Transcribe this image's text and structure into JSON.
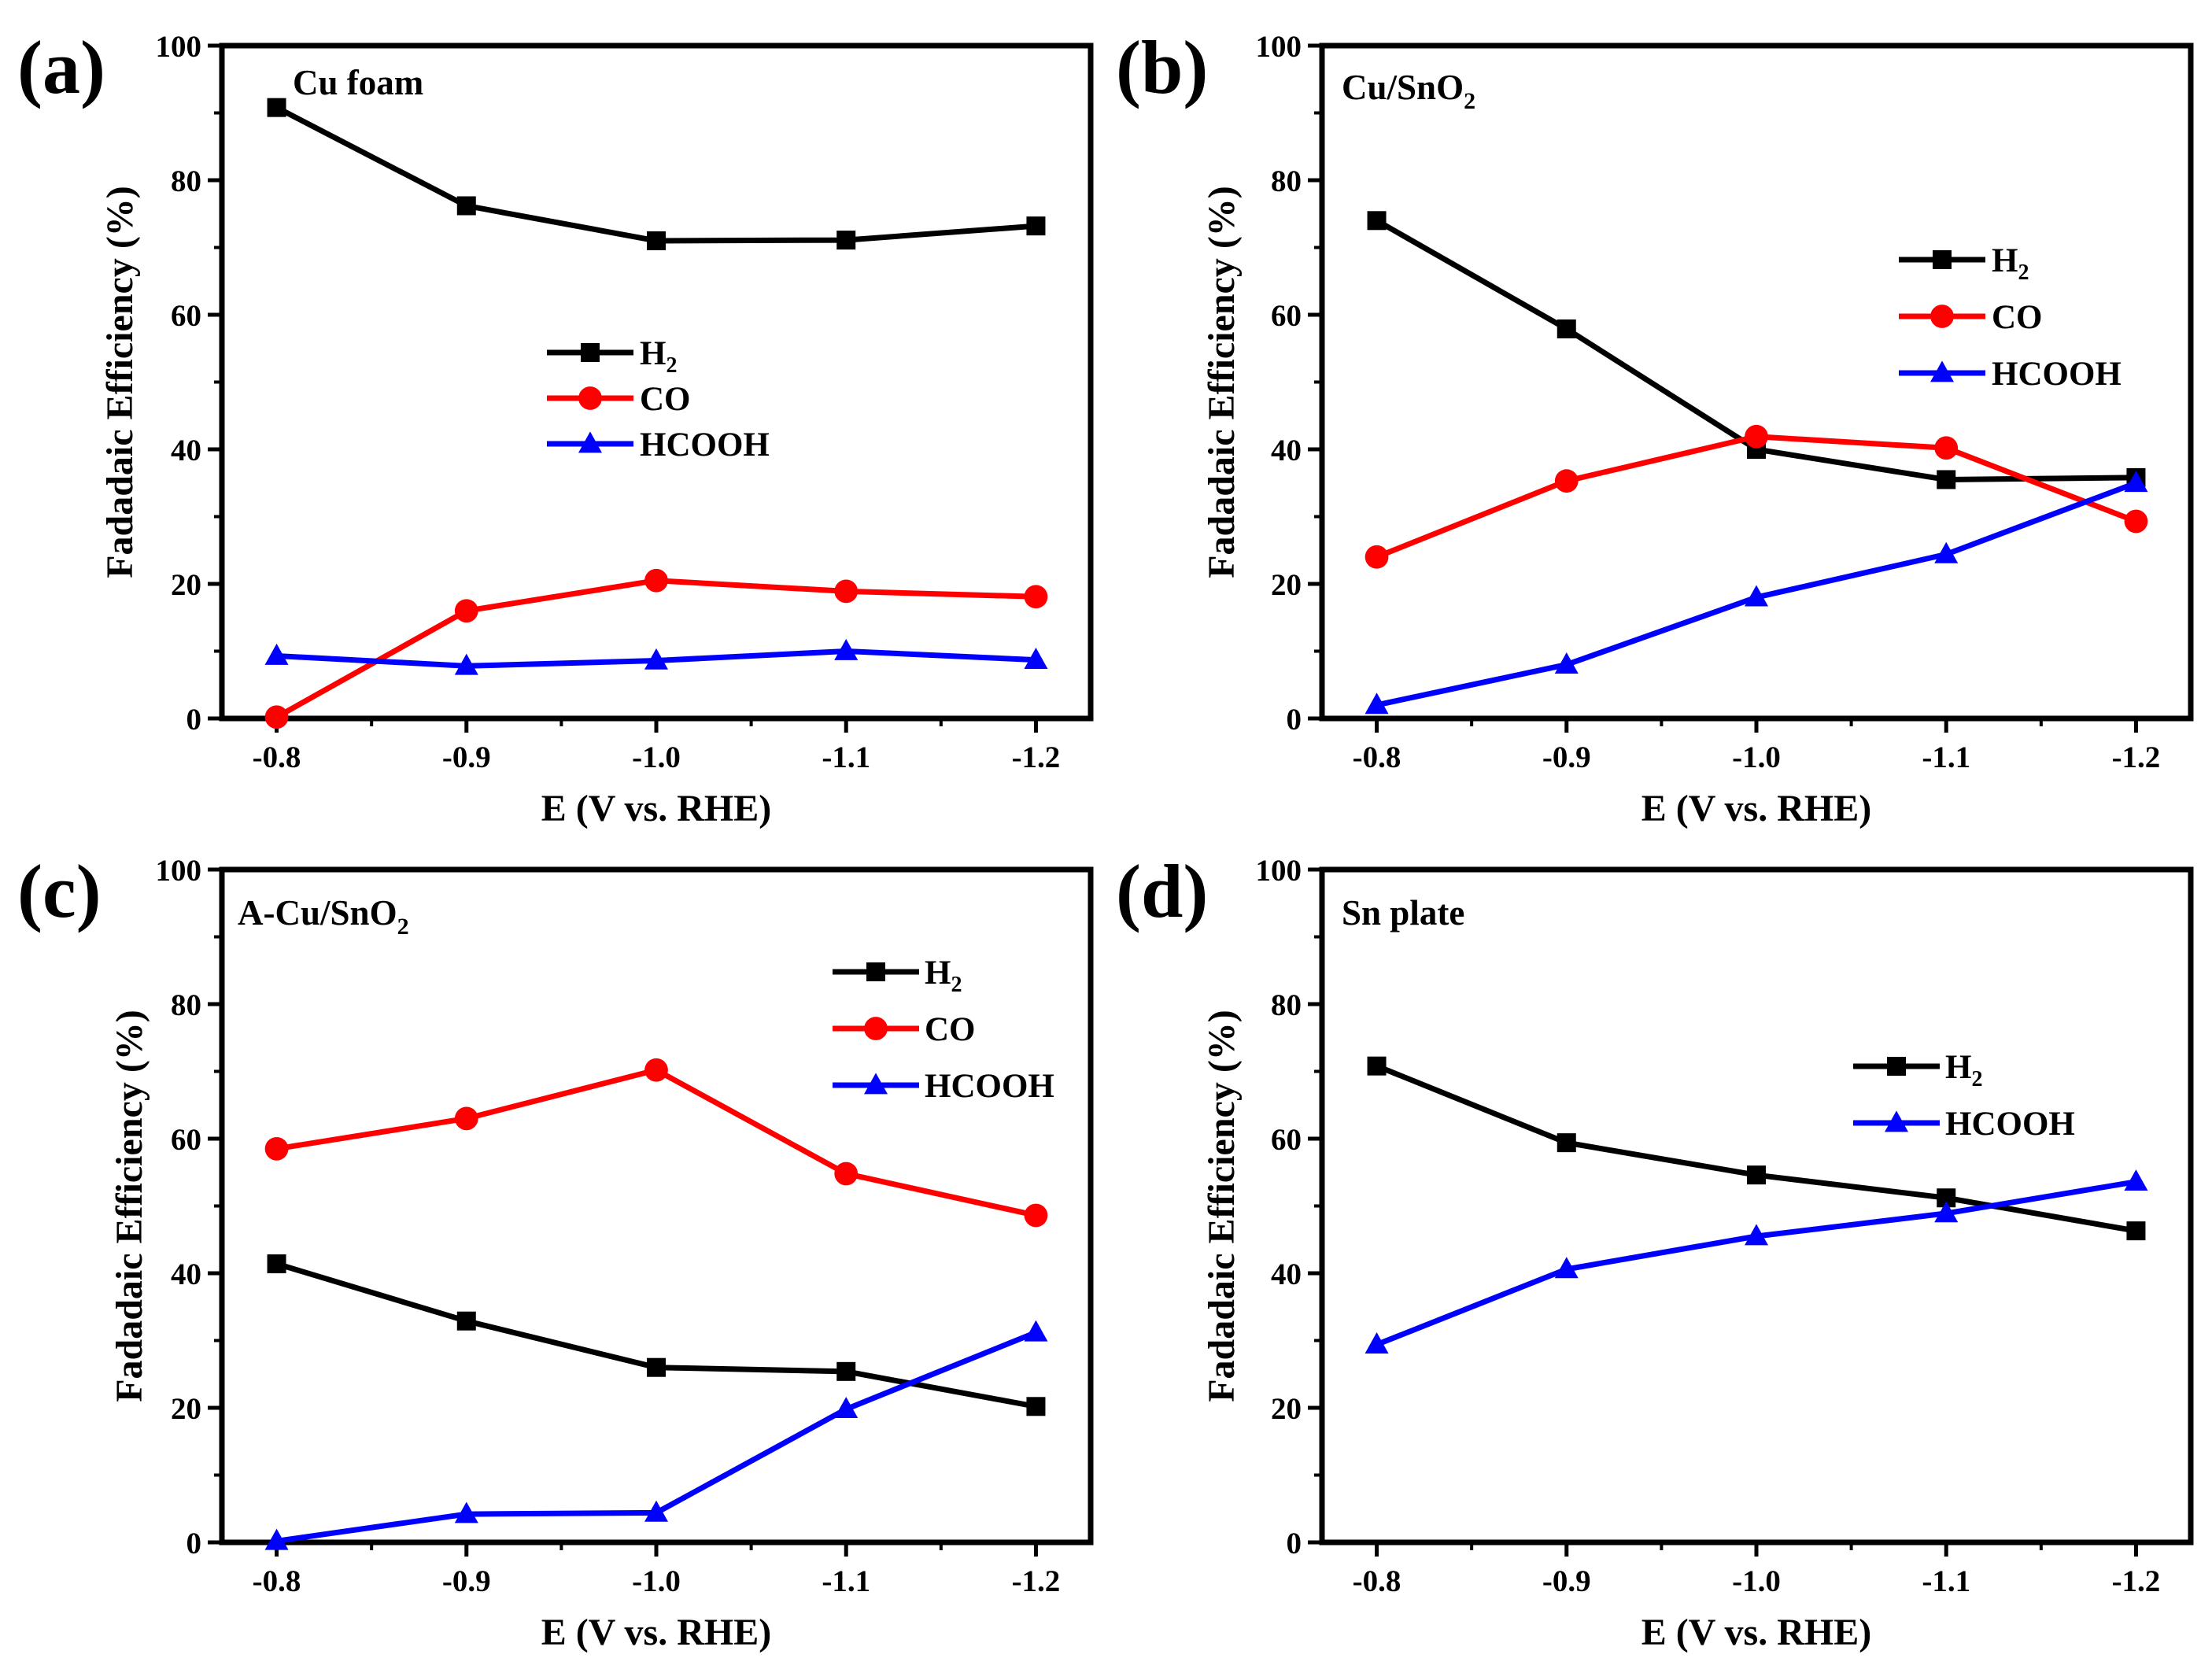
{
  "figure": {
    "colors": {
      "H2": "#000000",
      "CO": "#ff0000",
      "HCOOH": "#0000ff"
    }
  },
  "chart_data": [
    {
      "type": "line",
      "panel": "(a)",
      "title": "Cu foam",
      "xlabel": "E (V vs. RHE)",
      "ylabel": "Fadadaic Efficiency (%)",
      "categories": [
        "-0.8",
        "-0.9",
        "-1.0",
        "-1.1",
        "-1.2"
      ],
      "ylim": [
        0,
        100
      ],
      "yticks": [
        "0",
        "20",
        "40",
        "60",
        "80",
        "100"
      ],
      "legend_position": "center-left",
      "series": [
        {
          "name": "H2",
          "label_main": "H",
          "label_sub": "2",
          "marker": "square",
          "color": "#000000",
          "values": [
            90.8,
            76.2,
            71.0,
            71.1,
            73.2
          ]
        },
        {
          "name": "CO",
          "label_main": "CO",
          "label_sub": "",
          "marker": "circle",
          "color": "#ff0000",
          "values": [
            0.2,
            16.0,
            20.5,
            18.9,
            18.1
          ]
        },
        {
          "name": "HCOOH",
          "label_main": "HCOOH",
          "label_sub": "",
          "marker": "triangle",
          "color": "#0000ff",
          "values": [
            9.3,
            7.8,
            8.6,
            10.0,
            8.7
          ]
        }
      ]
    },
    {
      "type": "line",
      "panel": "(b)",
      "title": "Cu/SnO",
      "title_sub": "2",
      "xlabel": "E (V vs. RHE)",
      "ylabel": "Fadadaic Efficiency (%)",
      "categories": [
        "-0.8",
        "-0.9",
        "-1.0",
        "-1.1",
        "-1.2"
      ],
      "ylim": [
        0,
        100
      ],
      "yticks": [
        "0",
        "20",
        "40",
        "60",
        "80",
        "100"
      ],
      "legend_position": "top-right",
      "series": [
        {
          "name": "H2",
          "label_main": "H",
          "label_sub": "2",
          "marker": "square",
          "color": "#000000",
          "values": [
            74.0,
            57.9,
            40.0,
            35.5,
            35.8
          ]
        },
        {
          "name": "CO",
          "label_main": "CO",
          "label_sub": "",
          "marker": "circle",
          "color": "#ff0000",
          "values": [
            24.0,
            35.3,
            41.9,
            40.2,
            29.3
          ]
        },
        {
          "name": "HCOOH",
          "label_main": "HCOOH",
          "label_sub": "",
          "marker": "triangle",
          "color": "#0000ff",
          "values": [
            2.0,
            8.0,
            18.0,
            24.4,
            35.0
          ]
        }
      ]
    },
    {
      "type": "line",
      "panel": "(c)",
      "title": "A-Cu/SnO",
      "title_sub": "2",
      "xlabel": "E (V vs. RHE)",
      "ylabel": "Fadadaic Efficiency (%)",
      "categories": [
        "-0.8",
        "-0.9",
        "-1.0",
        "-1.1",
        "-1.2"
      ],
      "ylim": [
        0,
        100
      ],
      "yticks": [
        "0",
        "20",
        "40",
        "60",
        "80",
        "100"
      ],
      "legend_position": "top-right",
      "series": [
        {
          "name": "H2",
          "label_main": "H",
          "label_sub": "2",
          "marker": "square",
          "color": "#000000",
          "values": [
            41.4,
            32.9,
            26.0,
            25.4,
            20.2
          ]
        },
        {
          "name": "CO",
          "label_main": "CO",
          "label_sub": "",
          "marker": "circle",
          "color": "#ff0000",
          "values": [
            58.5,
            63.0,
            70.2,
            54.8,
            48.6
          ]
        },
        {
          "name": "HCOOH",
          "label_main": "HCOOH",
          "label_sub": "",
          "marker": "triangle",
          "color": "#0000ff",
          "values": [
            0.2,
            4.2,
            4.4,
            19.8,
            31.2
          ]
        }
      ]
    },
    {
      "type": "line",
      "panel": "(d)",
      "title": "Sn plate",
      "xlabel": "E (V vs. RHE)",
      "ylabel": "Fadadaic Efficiency (%)",
      "categories": [
        "-0.8",
        "-0.9",
        "-1.0",
        "-1.1",
        "-1.2"
      ],
      "ylim": [
        0,
        100
      ],
      "yticks": [
        "0",
        "20",
        "40",
        "60",
        "80",
        "100"
      ],
      "legend_position": "top-right",
      "series": [
        {
          "name": "H2",
          "label_main": "H",
          "label_sub": "2",
          "marker": "square",
          "color": "#000000",
          "values": [
            70.8,
            59.4,
            54.6,
            51.2,
            46.3
          ]
        },
        {
          "name": "HCOOH",
          "label_main": "HCOOH",
          "label_sub": "",
          "marker": "triangle",
          "color": "#0000ff",
          "values": [
            29.4,
            40.6,
            45.5,
            48.9,
            53.6
          ]
        }
      ]
    }
  ]
}
